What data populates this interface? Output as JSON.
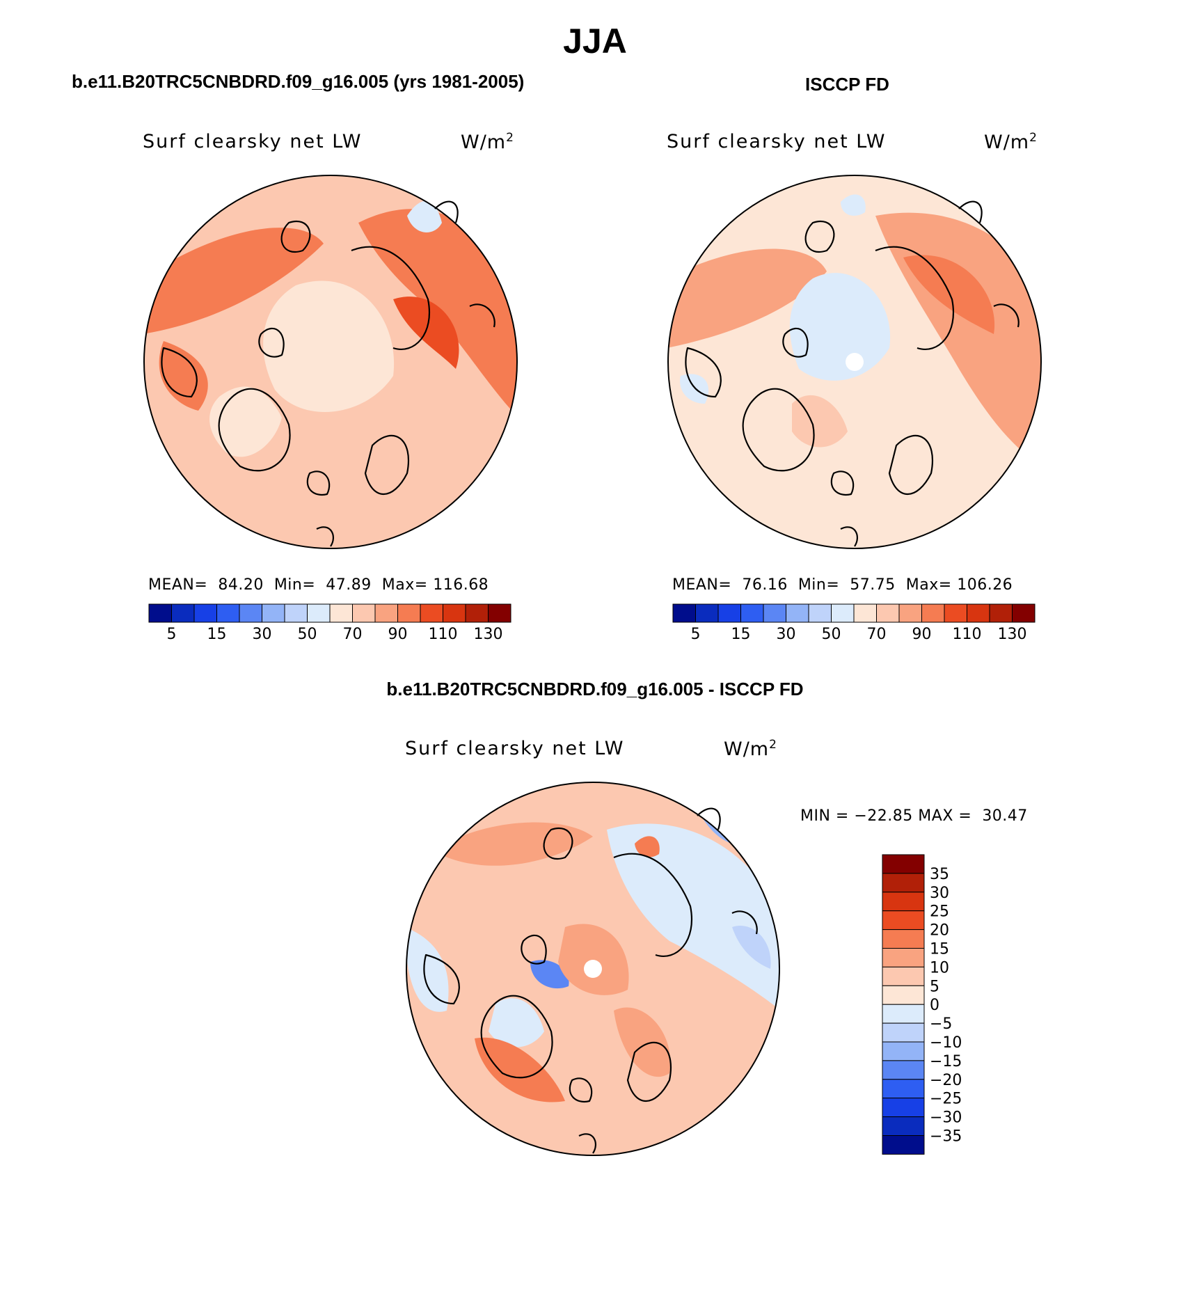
{
  "figure": {
    "season": "JJA"
  },
  "panels": [
    {
      "id": "model",
      "subtitle": "b.e11.B20TRC5CNBDRD.f09_g16.005 (yrs 1981-2005)",
      "field": "Surf clearsky net LW",
      "units_base": "W/m",
      "units_exp": "2",
      "stats": {
        "mean_label": "MEAN=",
        "mean": "84.20",
        "min_label": "Min=",
        "min": "47.89",
        "max_label": "Max=",
        "max": "116.68"
      },
      "dominant_level": 9
    },
    {
      "id": "obs",
      "subtitle": "ISCCP FD",
      "field": "Surf clearsky net LW",
      "units_base": "W/m",
      "units_exp": "2",
      "stats": {
        "mean_label": "MEAN=",
        "mean": "76.16",
        "min_label": "Min=",
        "min": "57.75",
        "max_label": "Max=",
        "max": "106.26"
      },
      "dominant_level": 8
    },
    {
      "id": "diff",
      "subtitle": "b.e11.B20TRC5CNBDRD.f09_g16.005 - ISCCP FD",
      "field": "Surf clearsky net LW",
      "units_base": "W/m",
      "units_exp": "2",
      "stats": {
        "min_label": "MIN =",
        "min": "−22.85",
        "max_label": "MAX =",
        "max": "30.47"
      },
      "dominant_level": 9
    }
  ],
  "chart_data": [
    {
      "type": "heatmap",
      "projection": "north polar stereographic",
      "title": "Surf clearsky net LW",
      "units": "W/m2",
      "mean": 84.2,
      "min": 47.89,
      "max": 116.68,
      "colorbar_ticks": [
        "5",
        "15",
        "30",
        "50",
        "70",
        "90",
        "110",
        "130"
      ],
      "colorbar_levels": [
        5,
        10,
        15,
        20,
        30,
        40,
        50,
        60,
        70,
        80,
        90,
        100,
        110,
        120,
        130
      ]
    },
    {
      "type": "heatmap",
      "projection": "north polar stereographic",
      "title": "Surf clearsky net LW",
      "units": "W/m2",
      "mean": 76.16,
      "min": 57.75,
      "max": 106.26,
      "colorbar_ticks": [
        "5",
        "15",
        "30",
        "50",
        "70",
        "90",
        "110",
        "130"
      ],
      "colorbar_levels": [
        5,
        10,
        15,
        20,
        30,
        40,
        50,
        60,
        70,
        80,
        90,
        100,
        110,
        120,
        130
      ]
    },
    {
      "type": "heatmap",
      "projection": "north polar stereographic",
      "title": "Surf clearsky net LW",
      "units": "W/m2",
      "min": -22.85,
      "max": 30.47,
      "colorbar_ticks": [
        "35",
        "30",
        "25",
        "20",
        "15",
        "10",
        "5",
        "0",
        "−5",
        "−10",
        "−15",
        "−20",
        "−25",
        "−30",
        "−35"
      ]
    }
  ],
  "colormap": [
    "#000d8c",
    "#0a2cbe",
    "#1740e6",
    "#2e5ef2",
    "#5b86f4",
    "#93b4f7",
    "#bfd3fa",
    "#dcebfb",
    "#fde6d6",
    "#fcc8b0",
    "#f9a380",
    "#f57c52",
    "#eb4c22",
    "#d83510",
    "#b12008",
    "#830000"
  ],
  "map_colors": {
    "land_line": "#000000",
    "hole": "#ffffff"
  }
}
